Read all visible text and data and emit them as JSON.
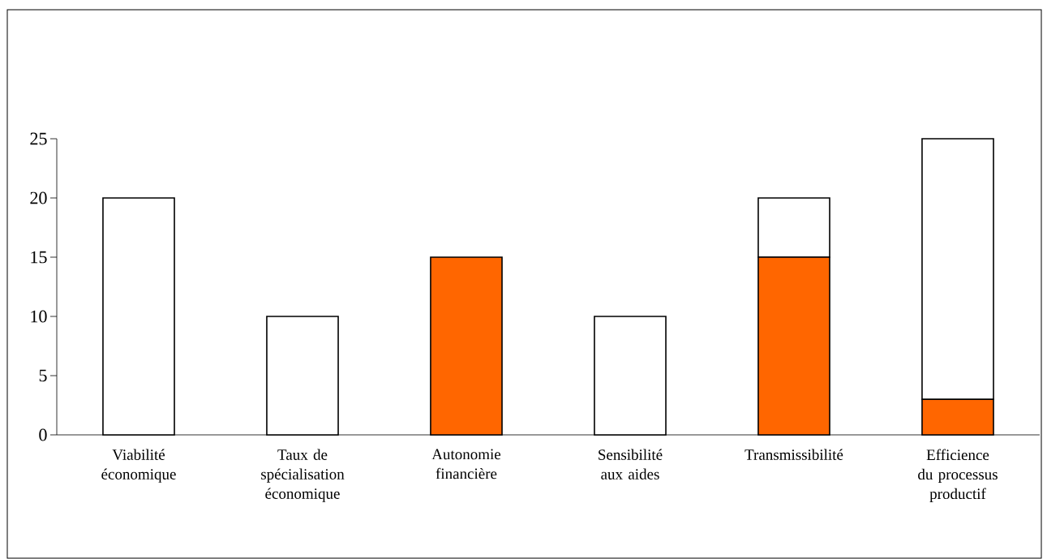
{
  "chart_data": {
    "type": "bar",
    "stacked": true,
    "categories": [
      "Viabilité économique",
      "Taux de spécialisation économique",
      "Autonomie financière",
      "Sensibilité aux aides",
      "Transmissibilité",
      "Efficience du processus productif"
    ],
    "series": [
      {
        "color": "#ff6600",
        "values": [
          0,
          0,
          15,
          0,
          15,
          3
        ]
      },
      {
        "color": "#ffffff",
        "values": [
          20,
          10,
          0,
          10,
          5,
          22
        ]
      }
    ],
    "ylim": [
      0,
      25
    ],
    "yticks": [
      0,
      5,
      10,
      15,
      20,
      25
    ]
  }
}
